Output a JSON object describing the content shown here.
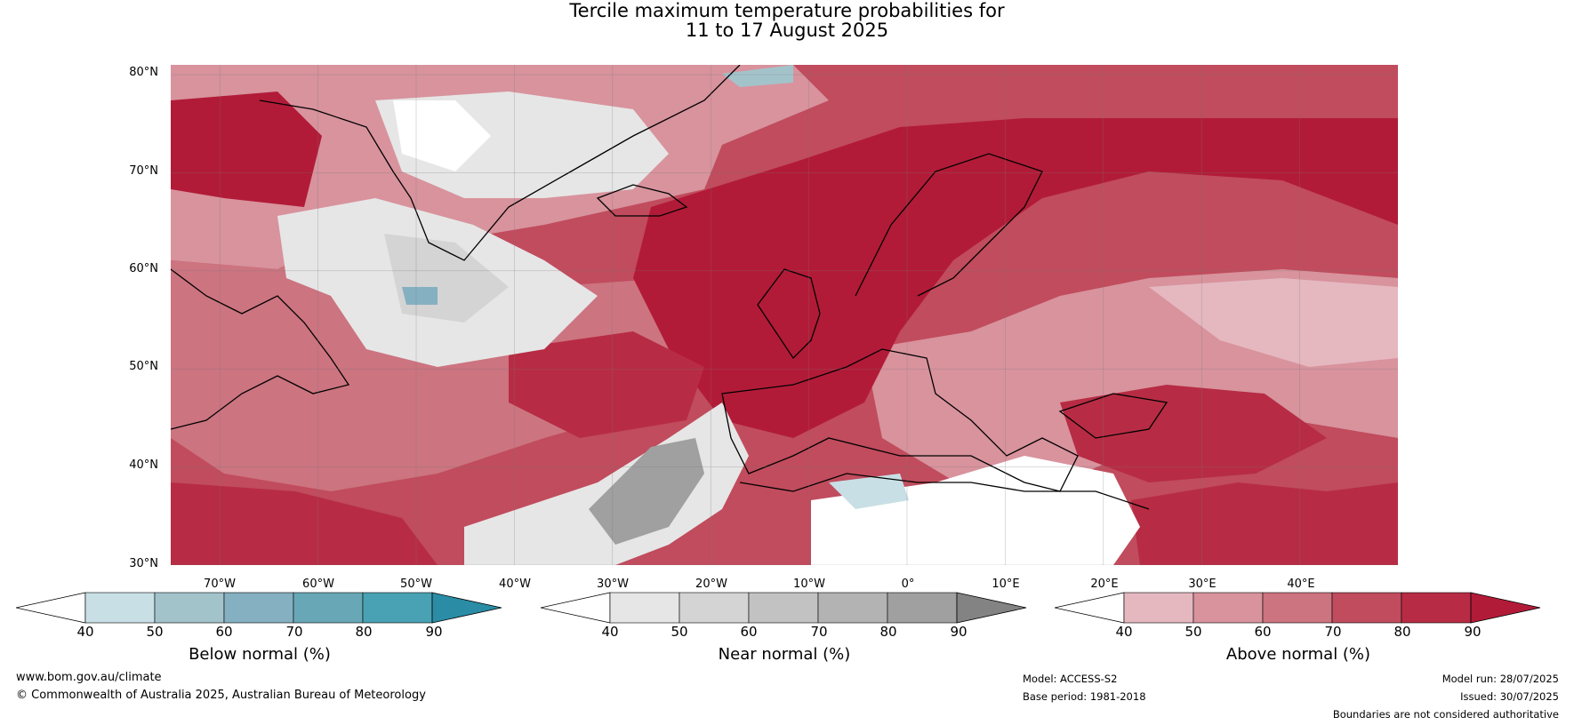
{
  "title": {
    "line1": "Tercile maximum temperature probabilities for",
    "line2": "11 to 17 August 2025"
  },
  "map": {
    "lat_labels": [
      "80°N",
      "70°N",
      "60°N",
      "50°N",
      "40°N",
      "30°N"
    ],
    "lon_labels": [
      "70°W",
      "60°W",
      "50°W",
      "40°W",
      "30°W",
      "20°W",
      "10°W",
      "0°",
      "10°E",
      "20°E",
      "30°E",
      "40°E"
    ],
    "extent": {
      "lon_min": -75,
      "lon_max": 50,
      "lat_min": 30,
      "lat_max": 81
    }
  },
  "colorbars": [
    {
      "label": "Below normal (%)",
      "ticks": [
        "40",
        "50",
        "60",
        "70",
        "80",
        "90"
      ],
      "colors": [
        "#ffffff",
        "#c8dfe5",
        "#a3c3cb",
        "#85b0c1",
        "#68a8b6",
        "#49a2b4",
        "#2a8da5"
      ]
    },
    {
      "label": "Near normal (%)",
      "ticks": [
        "40",
        "50",
        "60",
        "70",
        "80",
        "90"
      ],
      "colors": [
        "#ffffff",
        "#e6e6e6",
        "#d4d4d4",
        "#c2c2c2",
        "#b3b3b3",
        "#a0a0a0",
        "#838383"
      ]
    },
    {
      "label": "Above normal (%)",
      "ticks": [
        "40",
        "50",
        "60",
        "70",
        "80",
        "90"
      ],
      "colors": [
        "#ffffff",
        "#e5b8c0",
        "#d8939d",
        "#cc7480",
        "#c04c5d",
        "#b72c44",
        "#b21b38"
      ]
    }
  ],
  "footer": {
    "website": "www.bom.gov.au/climate",
    "copyright": "© Commonwealth of Australia 2025, Australian Bureau of Meteorology",
    "model": "Model: ACCESS-S2",
    "base_period": "Base period: 1981-2018",
    "model_run": "Model run: 28/07/2025",
    "issued": "Issued: 30/07/2025",
    "disclaimer": "Boundaries are not considered authoritative"
  }
}
